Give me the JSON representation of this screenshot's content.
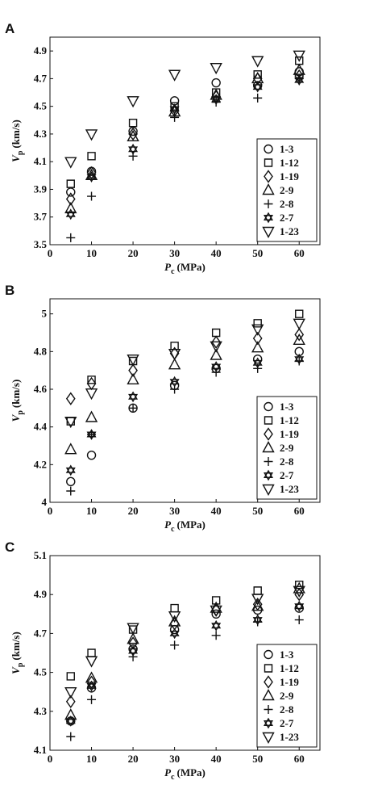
{
  "chart_data": [
    {
      "type": "scatter",
      "panel": "A",
      "x_label": {
        "text": "P",
        "sub": "c",
        "unit": "(MPa)"
      },
      "y_label": {
        "text": "V",
        "sub": "p",
        "unit": "(km/s)"
      },
      "xlim": [
        0,
        65
      ],
      "xticks": [
        0,
        10,
        20,
        30,
        40,
        50,
        60
      ],
      "ylim": [
        3.5,
        5.0
      ],
      "yticks": [
        3.5,
        3.7,
        3.9,
        4.1,
        4.3,
        4.5,
        4.7,
        4.9
      ],
      "x": [
        5,
        10,
        20,
        30,
        40,
        50,
        60
      ],
      "series": [
        {
          "name": "1-3",
          "marker": "circle",
          "color": "#000000",
          "values": [
            3.88,
            4.03,
            4.32,
            4.54,
            4.67,
            4.65,
            4.75
          ]
        },
        {
          "name": "1-12",
          "marker": "square",
          "color": "#000000",
          "values": [
            3.94,
            4.14,
            4.38,
            4.5,
            4.6,
            4.73,
            4.83
          ]
        },
        {
          "name": "1-19",
          "marker": "diamond",
          "color": "#000000",
          "values": [
            3.83,
            4.02,
            4.3,
            4.47,
            4.57,
            4.7,
            4.72
          ]
        },
        {
          "name": "2-9",
          "marker": "triangle",
          "color": "#000000",
          "values": [
            3.76,
            4.0,
            4.28,
            4.46,
            4.58,
            4.7,
            4.76
          ]
        },
        {
          "name": "2-8",
          "marker": "plus",
          "color": "#000000",
          "values": [
            3.55,
            3.85,
            4.14,
            4.42,
            4.53,
            4.56,
            4.7
          ]
        },
        {
          "name": "2-7",
          "marker": "hexagram",
          "color": "#000000",
          "values": [
            3.72,
            3.99,
            4.19,
            4.48,
            4.55,
            4.64,
            4.69
          ]
        },
        {
          "name": "1-23",
          "marker": "triangle-down",
          "color": "#000000",
          "values": [
            4.1,
            4.3,
            4.54,
            4.73,
            4.78,
            4.83,
            4.87
          ]
        }
      ]
    },
    {
      "type": "scatter",
      "panel": "B",
      "x_label": {
        "text": "P",
        "sub": "c",
        "unit": "(MPa)"
      },
      "y_label": {
        "text": "V",
        "sub": "p",
        "unit": "(km/s)"
      },
      "xlim": [
        0,
        65
      ],
      "xticks": [
        0,
        10,
        20,
        30,
        40,
        50,
        60
      ],
      "ylim": [
        4.0,
        5.08
      ],
      "yticks": [
        4,
        4.2,
        4.4,
        4.6,
        4.8,
        5
      ],
      "x": [
        5,
        10,
        20,
        30,
        40,
        50,
        60
      ],
      "series": [
        {
          "name": "1-3",
          "marker": "circle",
          "color": "#000000",
          "values": [
            4.11,
            4.25,
            4.5,
            4.62,
            4.71,
            4.76,
            4.8
          ]
        },
        {
          "name": "1-12",
          "marker": "square",
          "color": "#000000",
          "values": [
            4.43,
            4.65,
            4.75,
            4.83,
            4.9,
            4.95,
            5.0
          ]
        },
        {
          "name": "1-19",
          "marker": "diamond",
          "color": "#000000",
          "values": [
            4.55,
            4.63,
            4.7,
            4.79,
            4.85,
            4.87,
            4.89
          ]
        },
        {
          "name": "2-9",
          "marker": "triangle",
          "color": "#000000",
          "values": [
            4.28,
            4.45,
            4.65,
            4.73,
            4.78,
            4.82,
            4.86
          ]
        },
        {
          "name": "2-8",
          "marker": "plus",
          "color": "#000000",
          "values": [
            4.06,
            4.36,
            4.5,
            4.6,
            4.69,
            4.71,
            4.75
          ]
        },
        {
          "name": "2-7",
          "marker": "hexagram",
          "color": "#000000",
          "values": [
            4.17,
            4.36,
            4.56,
            4.64,
            4.72,
            4.74,
            4.76
          ]
        },
        {
          "name": "1-23",
          "marker": "triangle-down",
          "color": "#000000",
          "values": [
            4.43,
            4.58,
            4.76,
            4.79,
            4.83,
            4.92,
            4.95
          ]
        }
      ]
    },
    {
      "type": "scatter",
      "panel": "C",
      "x_label": {
        "text": "P",
        "sub": "c",
        "unit": "(MPa)"
      },
      "y_label": {
        "text": "V",
        "sub": "p",
        "unit": "(km/s)"
      },
      "xlim": [
        0,
        65
      ],
      "xticks": [
        0,
        10,
        20,
        30,
        40,
        50,
        60
      ],
      "ylim": [
        4.1,
        5.1
      ],
      "yticks": [
        4.1,
        4.3,
        4.5,
        4.7,
        4.9,
        5.1
      ],
      "x": [
        5,
        10,
        20,
        30,
        40,
        50,
        60
      ],
      "series": [
        {
          "name": "1-3",
          "marker": "circle",
          "color": "#000000",
          "values": [
            4.25,
            4.42,
            4.62,
            4.72,
            4.8,
            4.82,
            4.83
          ]
        },
        {
          "name": "1-12",
          "marker": "square",
          "color": "#000000",
          "values": [
            4.48,
            4.6,
            4.72,
            4.83,
            4.87,
            4.92,
            4.95
          ]
        },
        {
          "name": "1-19",
          "marker": "diamond",
          "color": "#000000",
          "values": [
            4.35,
            4.45,
            4.65,
            4.75,
            4.82,
            4.85,
            4.9
          ]
        },
        {
          "name": "2-9",
          "marker": "triangle",
          "color": "#000000",
          "values": [
            4.28,
            4.47,
            4.67,
            4.76,
            4.83,
            4.84,
            4.93
          ]
        },
        {
          "name": "2-8",
          "marker": "plus",
          "color": "#000000",
          "values": [
            4.17,
            4.36,
            4.58,
            4.64,
            4.69,
            4.76,
            4.77
          ]
        },
        {
          "name": "2-7",
          "marker": "hexagram",
          "color": "#000000",
          "values": [
            4.25,
            4.43,
            4.61,
            4.7,
            4.74,
            4.77,
            4.84
          ]
        },
        {
          "name": "1-23",
          "marker": "triangle-down",
          "color": "#000000",
          "values": [
            4.4,
            4.56,
            4.73,
            4.79,
            4.82,
            4.88,
            4.92
          ]
        }
      ]
    }
  ]
}
